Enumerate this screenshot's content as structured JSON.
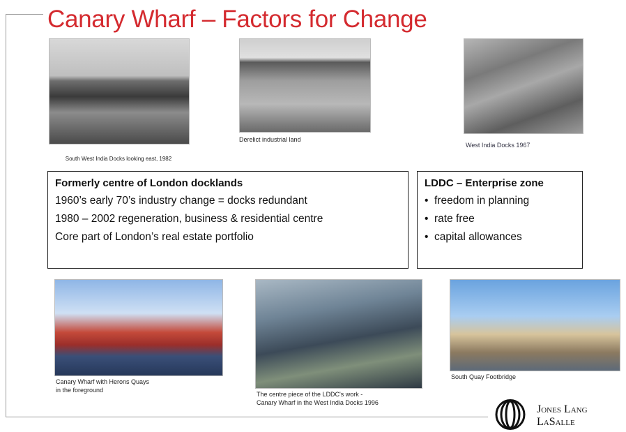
{
  "title": "Canary Wharf – Factors for Change",
  "photos": [
    {
      "caption": [
        "South West India Docks looking east, 1982"
      ]
    },
    {
      "caption": [
        "Derelict industrial land"
      ]
    },
    {
      "caption": [
        "West India Docks 1967"
      ]
    },
    {
      "caption": [
        "Canary Wharf with Herons Quays",
        "in the foreground"
      ]
    },
    {
      "caption": [
        "The centre piece of the LDDC's work -",
        "Canary Wharf in the West India Docks 1996"
      ]
    },
    {
      "caption": [
        "South Quay Footbridge"
      ]
    }
  ],
  "boxes": [
    {
      "heading": "Formerly centre of London docklands",
      "lines": [
        "1960’s early 70’s industry change = docks redundant",
        "1980 – 2002 regeneration, business & residential centre",
        "Core part of London’s real estate portfolio"
      ]
    },
    {
      "heading": "LDDC – Enterprise zone",
      "lines": [
        "freedom in planning",
        "rate free",
        "capital allowances"
      ]
    }
  ],
  "logo": [
    "Jones Lang",
    "LaSalle"
  ]
}
